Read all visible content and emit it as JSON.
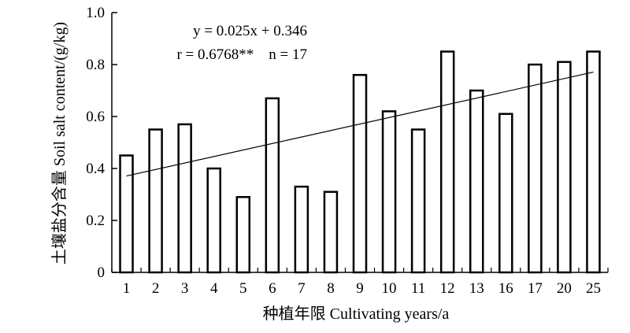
{
  "chart_data": {
    "type": "bar",
    "categories": [
      "1",
      "2",
      "3",
      "4",
      "5",
      "6",
      "7",
      "8",
      "9",
      "10",
      "11",
      "12",
      "13",
      "16",
      "17",
      "20",
      "25"
    ],
    "values": [
      0.45,
      0.55,
      0.57,
      0.4,
      0.29,
      0.67,
      0.33,
      0.31,
      0.76,
      0.62,
      0.55,
      0.85,
      0.7,
      0.61,
      0.8,
      0.81,
      0.85
    ],
    "xlabel": "种植年限 Cultivating years/a",
    "ylabel": "土壤盐分含量 Soil salt content/(g/kg)",
    "ylim": [
      0,
      1.0
    ],
    "yticks": [
      "0",
      "0.2",
      "0.4",
      "0.6",
      "0.8",
      "1.0"
    ],
    "trendline": {
      "slope": 0.025,
      "intercept": 0.346,
      "x_start": 1,
      "x_end": 17
    },
    "annotations": {
      "equation": "y = 0.025x + 0.346",
      "stats": "r = 0.6768**    n = 17"
    },
    "colors": {
      "bar_fill": "#ffffff",
      "bar_stroke": "#000000",
      "line": "#000000"
    }
  }
}
